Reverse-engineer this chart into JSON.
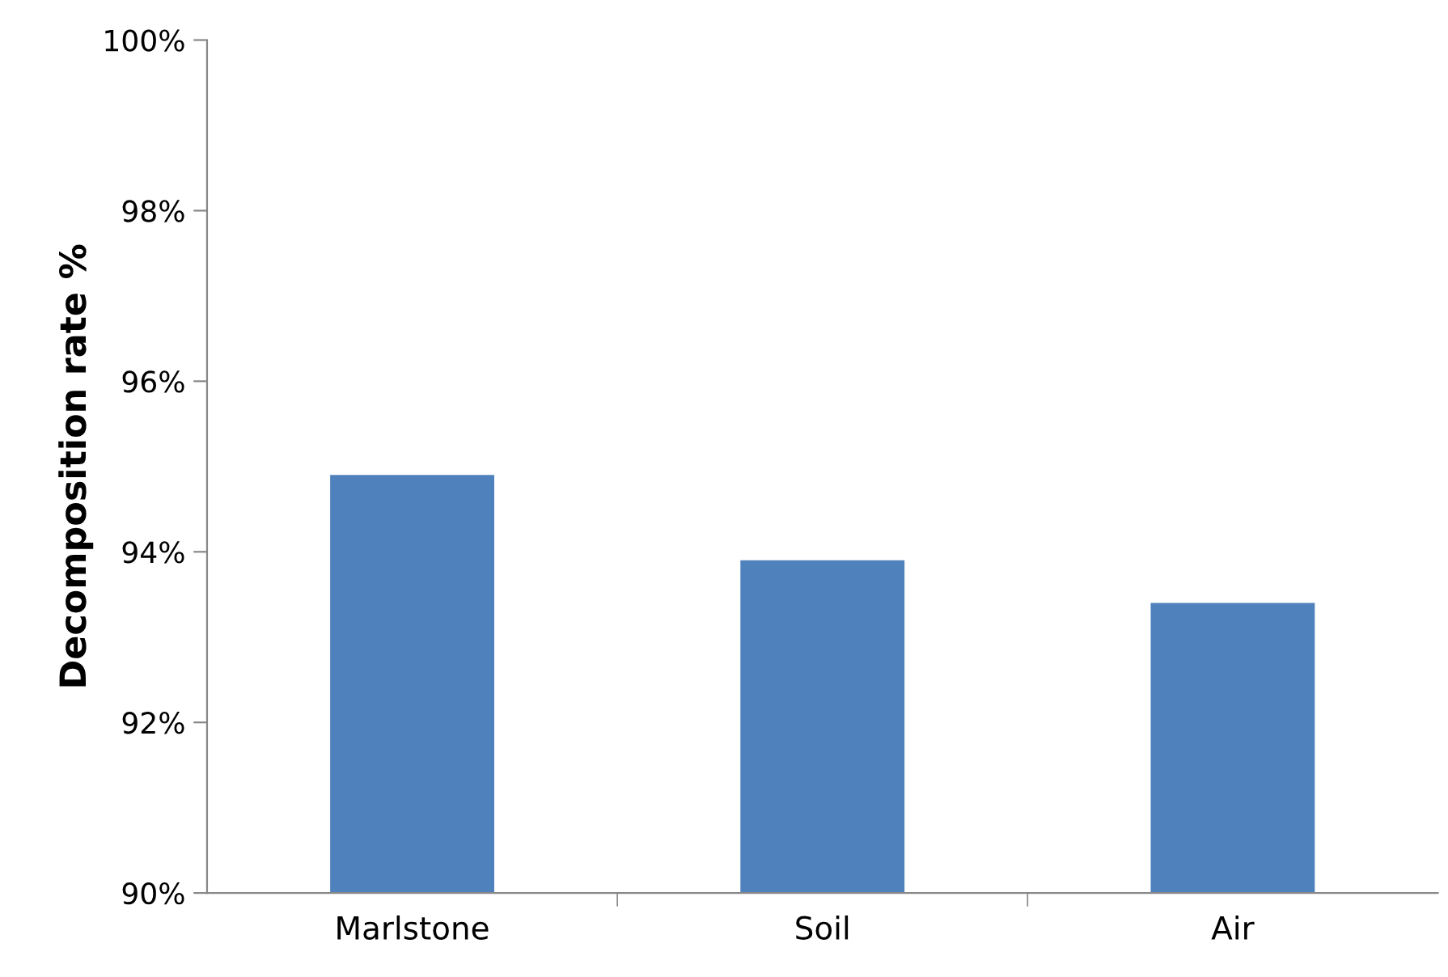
{
  "chart_data": {
    "type": "bar",
    "ylabel": "Decomposition rate %",
    "categories": [
      "Marlstone",
      "Soil",
      "Air"
    ],
    "values": [
      94.9,
      93.9,
      93.4
    ],
    "color": "#4f81bd",
    "ylim": [
      90,
      100
    ],
    "yticks": [
      {
        "value": 90,
        "label": "90%"
      },
      {
        "value": 92,
        "label": "92%"
      },
      {
        "value": 94,
        "label": "94%"
      },
      {
        "value": 96,
        "label": "96%"
      },
      {
        "value": 98,
        "label": "98%"
      },
      {
        "value": 100,
        "label": "100%"
      }
    ],
    "grid": false
  }
}
